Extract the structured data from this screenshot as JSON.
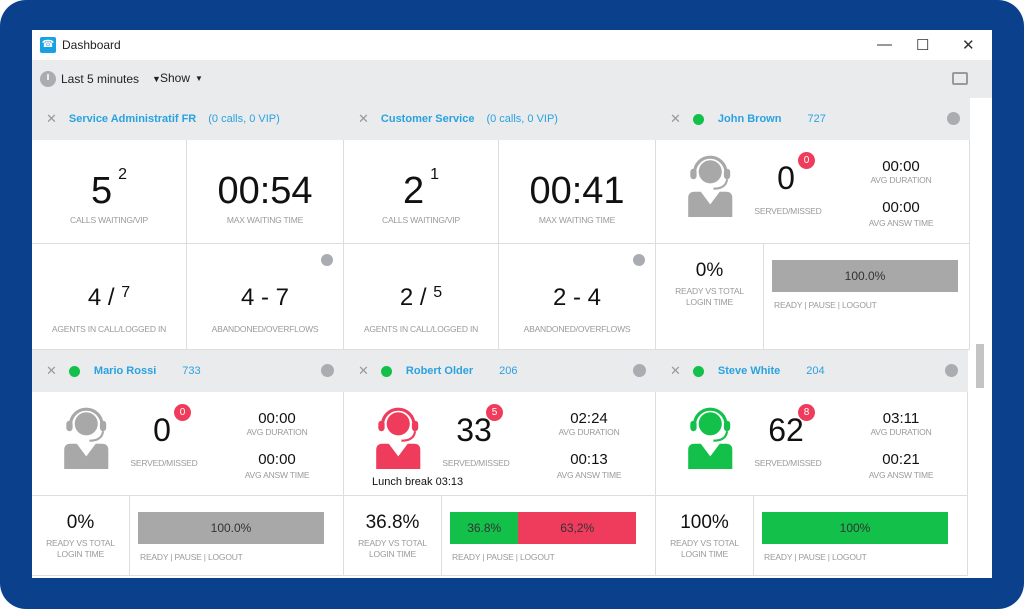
{
  "window": {
    "title": "Dashboard",
    "minimize": "—",
    "maximize": "☐",
    "close": "✕"
  },
  "toolbar": {
    "time_range": "Last 5 minutes",
    "show": "Show"
  },
  "colors": {
    "accent": "#2aa2e0",
    "ready": "#12c04a",
    "pause": "#f03c5c",
    "inactive": "#a8a8a8",
    "frame": "#0b418c"
  },
  "queues": [
    {
      "name": "Service Administratif FR",
      "info": "(0 calls, 0 VIP)",
      "calls_waiting": "5",
      "vip": "2",
      "calls_label": "Calls waiting/VIP",
      "max_wait": "00:54",
      "max_wait_label": "Max waiting time",
      "agents_in_call": "4",
      "agents_logged": "7",
      "agents_label": "Agents in call/logged in",
      "abandoned": "4",
      "overflows": "7",
      "abandoned_label": "Abandoned/Overflows"
    },
    {
      "name": "Customer Service",
      "info": "(0 calls, 0 VIP)",
      "calls_waiting": "2",
      "vip": "1",
      "calls_label": "Calls waiting/VIP",
      "max_wait": "00:41",
      "max_wait_label": "Max waiting time",
      "agents_in_call": "2",
      "agents_logged": "5",
      "agents_label": "Agents in call/logged in",
      "abandoned": "2",
      "overflows": "4",
      "abandoned_label": "Abandoned/Overflows"
    }
  ],
  "agents": [
    {
      "name": "John Brown",
      "ext": "727",
      "served": "0",
      "missed": "0",
      "served_label": "Served/Missed",
      "avg_duration": "00:00",
      "avg_duration_label": "Avg duration",
      "avg_answ": "00:00",
      "avg_answ_label": "Avg answ time",
      "ready_pct": "0%",
      "ready_label": "Ready vs total login time",
      "bar": [
        {
          "label": "100.0%",
          "value": 100,
          "color": "#a8a8a8"
        }
      ],
      "bar_legend": "READY | PAUSE | LOGOUT",
      "icon_color": "#a8a8a8",
      "status": ""
    },
    {
      "name": "Mario Rossi",
      "ext": "733",
      "served": "0",
      "missed": "0",
      "served_label": "Served/Missed",
      "avg_duration": "00:00",
      "avg_duration_label": "Avg duration",
      "avg_answ": "00:00",
      "avg_answ_label": "Avg answ time",
      "ready_pct": "0%",
      "ready_label": "Ready vs total login time",
      "bar": [
        {
          "label": "100.0%",
          "value": 100,
          "color": "#a8a8a8"
        }
      ],
      "bar_legend": "READY | PAUSE | LOGOUT",
      "icon_color": "#a8a8a8",
      "status": ""
    },
    {
      "name": "Robert Older",
      "ext": "206",
      "served": "33",
      "missed": "5",
      "served_label": "Served/Missed",
      "avg_duration": "02:24",
      "avg_duration_label": "Avg duration",
      "avg_answ": "00:13",
      "avg_answ_label": "Avg answ time",
      "ready_pct": "36.8%",
      "ready_label": "Ready vs total login time",
      "bar": [
        {
          "label": "36.8%",
          "value": 36.8,
          "color": "#12c04a"
        },
        {
          "label": "63,2%",
          "value": 63.2,
          "color": "#f03c5c"
        }
      ],
      "bar_legend": "READY | PAUSE | LOGOUT",
      "icon_color": "#f03c5c",
      "status": "Lunch break 03:13"
    },
    {
      "name": "Steve White",
      "ext": "204",
      "served": "62",
      "missed": "8",
      "served_label": "Served/Missed",
      "avg_duration": "03:11",
      "avg_duration_label": "Avg duration",
      "avg_answ": "00:21",
      "avg_answ_label": "Avg answ time",
      "ready_pct": "100%",
      "ready_label": "Ready vs total login time",
      "bar": [
        {
          "label": "100%",
          "value": 100,
          "color": "#12c04a"
        }
      ],
      "bar_legend": "READY | PAUSE | LOGOUT",
      "icon_color": "#12c04a",
      "status": ""
    }
  ]
}
